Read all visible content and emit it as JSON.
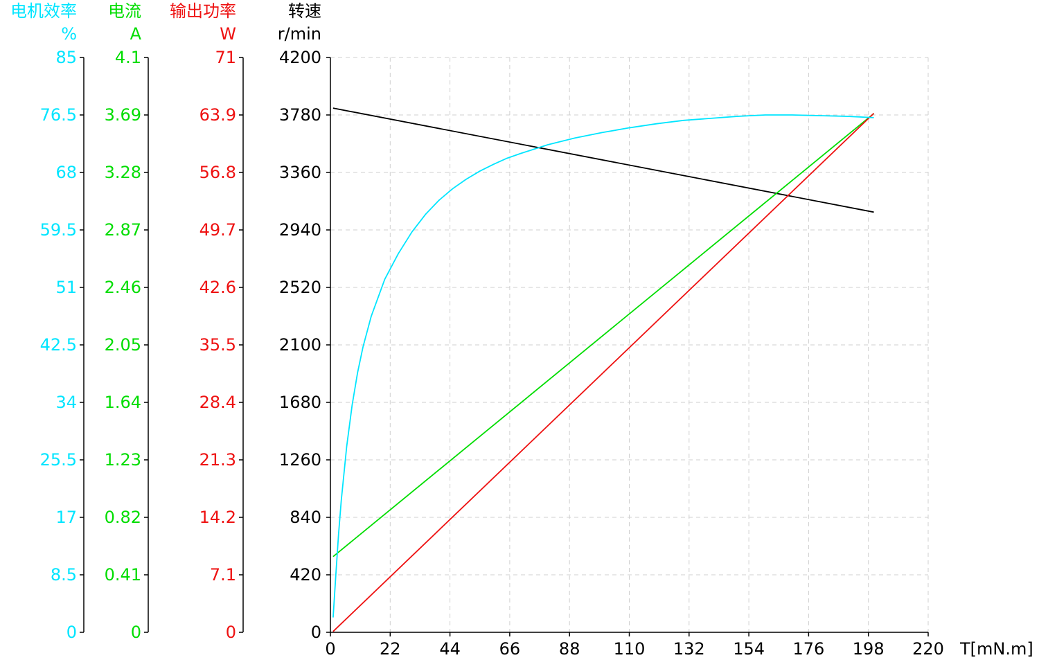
{
  "chart_data": {
    "type": "line",
    "x_axis": {
      "label": "T[mN.m]",
      "min": 0,
      "max": 220,
      "ticks": [
        "0",
        "22",
        "44",
        "66",
        "88",
        "110",
        "132",
        "154",
        "176",
        "198",
        "220"
      ]
    },
    "axes": [
      {
        "key": "efficiency",
        "title": "电机效率",
        "unit": "%",
        "color": "#00e5ff",
        "min": 0,
        "max": 85,
        "ticks": [
          "0",
          "8.5",
          "17",
          "25.5",
          "34",
          "42.5",
          "51",
          "59.5",
          "68",
          "76.5",
          "85"
        ]
      },
      {
        "key": "current",
        "title": "电流",
        "unit": "A",
        "color": "#00dd00",
        "min": 0,
        "max": 4.1,
        "ticks": [
          "0",
          "0.41",
          "0.82",
          "1.23",
          "1.64",
          "2.05",
          "2.46",
          "2.87",
          "3.28",
          "3.69",
          "4.1"
        ]
      },
      {
        "key": "power",
        "title": "输出功率",
        "unit": "W",
        "color": "#ee1111",
        "min": 0,
        "max": 71,
        "ticks": [
          "0",
          "7.1",
          "14.2",
          "21.3",
          "28.4",
          "35.5",
          "42.6",
          "49.7",
          "56.8",
          "63.9",
          "71"
        ]
      },
      {
        "key": "speed",
        "title": "转速",
        "unit": "r/min",
        "color": "#000000",
        "min": 0,
        "max": 4200,
        "ticks": [
          "0",
          "420",
          "840",
          "1260",
          "1680",
          "2100",
          "2520",
          "2940",
          "3360",
          "3780",
          "4200"
        ]
      }
    ],
    "grid": true,
    "series": [
      {
        "axis": "speed",
        "color": "#000000",
        "x": [
          1,
          200
        ],
        "y": [
          3830,
          3070
        ]
      },
      {
        "axis": "current",
        "color": "#00dd00",
        "x": [
          1,
          200
        ],
        "y": [
          0.54,
          3.7
        ]
      },
      {
        "axis": "power",
        "color": "#ee1111",
        "x": [
          1,
          200
        ],
        "y": [
          0.1,
          64.1
        ]
      },
      {
        "axis": "efficiency",
        "color": "#00e5ff",
        "x": [
          1,
          2,
          3,
          4,
          6,
          8,
          10,
          12,
          15,
          20,
          25,
          30,
          35,
          40,
          45,
          50,
          55,
          60,
          65,
          70,
          80,
          90,
          100,
          110,
          120,
          130,
          140,
          150,
          160,
          165,
          170,
          180,
          190,
          200
        ],
        "y": [
          2.2,
          8.5,
          14.5,
          19.5,
          27.5,
          33.6,
          38.4,
          42.2,
          46.7,
          52.2,
          56.0,
          59.2,
          61.8,
          63.9,
          65.6,
          67.0,
          68.2,
          69.2,
          70.1,
          70.8,
          72.1,
          73.1,
          73.9,
          74.6,
          75.2,
          75.7,
          76.0,
          76.3,
          76.5,
          76.5,
          76.5,
          76.4,
          76.3,
          76.1
        ]
      }
    ]
  }
}
